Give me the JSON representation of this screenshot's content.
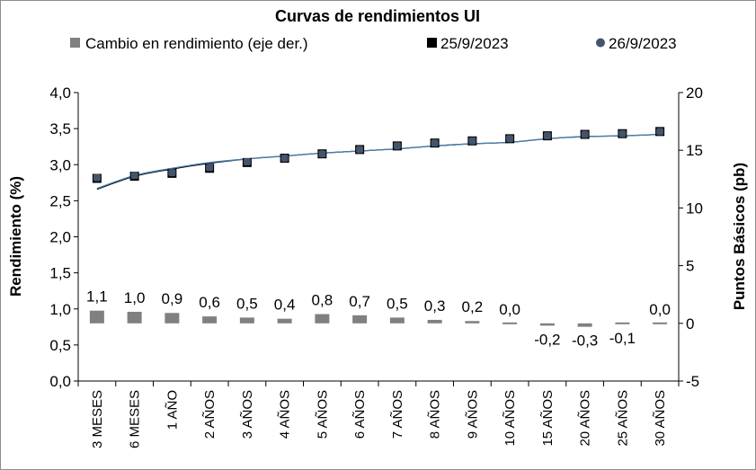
{
  "chart_data": {
    "type": "bar+line",
    "title": "Curvas de rendimientos UI",
    "categories": [
      "3 MESES",
      "6 MESES",
      "1 AÑO",
      "2 AÑOS",
      "3 AÑOS",
      "4 AÑOS",
      "5 AÑOS",
      "6 AÑOS",
      "7 AÑOS",
      "8 AÑOS",
      "9 AÑOS",
      "10 AÑOS",
      "15 AÑOS",
      "20 AÑOS",
      "25 AÑOS",
      "30 AÑOS"
    ],
    "series": [
      {
        "name": "Cambio en rendimiento (eje der.)",
        "type": "bar",
        "axis": "right",
        "color": "#808080",
        "values": [
          1.1,
          1.0,
          0.9,
          0.6,
          0.5,
          0.4,
          0.8,
          0.7,
          0.5,
          0.3,
          0.2,
          0.0,
          -0.2,
          -0.3,
          -0.1,
          0.0
        ],
        "labels": [
          "1,1",
          "1,0",
          "0,9",
          "0,6",
          "0,5",
          "0,4",
          "0,8",
          "0,7",
          "0,5",
          "0,3",
          "0,2",
          "0,0",
          "-0,2",
          "-0,3",
          "-0,1",
          "0,0"
        ]
      },
      {
        "name": "25/9/2023",
        "type": "scatter",
        "axis": "left",
        "marker": "square",
        "color": "#000000",
        "values": [
          2.81,
          2.84,
          2.88,
          2.95,
          3.03,
          3.09,
          3.15,
          3.21,
          3.26,
          3.3,
          3.33,
          3.36,
          3.4,
          3.42,
          3.43,
          3.46
        ]
      },
      {
        "name": "26/9/2023",
        "type": "scatter",
        "axis": "left",
        "marker": "circle",
        "color": "#44546a",
        "values": [
          2.82,
          2.85,
          2.89,
          2.96,
          3.04,
          3.09,
          3.15,
          3.21,
          3.26,
          3.3,
          3.33,
          3.36,
          3.4,
          3.42,
          3.43,
          3.46
        ]
      },
      {
        "type": "line",
        "axis": "left",
        "color": "#000000",
        "values": [
          2.66,
          2.84,
          2.94,
          3.02,
          3.08,
          3.12,
          3.16,
          3.19,
          3.22,
          3.26,
          3.29,
          3.31,
          3.36,
          3.39,
          3.4,
          3.42
        ]
      },
      {
        "type": "line",
        "axis": "left",
        "color": "#4a7fb0",
        "values": [
          2.67,
          2.85,
          2.95,
          3.03,
          3.08,
          3.12,
          3.16,
          3.19,
          3.22,
          3.26,
          3.29,
          3.31,
          3.36,
          3.39,
          3.4,
          3.42
        ]
      }
    ],
    "ylabel": "Rendimiento (%)",
    "ylabel_right": "Puntos Básicos (pb)",
    "ylim": [
      0,
      4
    ],
    "ylim_right": [
      -5,
      20
    ],
    "y_ticks": [
      "0,0",
      "0,5",
      "1,0",
      "1,5",
      "2,0",
      "2,5",
      "3,0",
      "3,5",
      "4,0"
    ],
    "y_ticks_right": [
      "-5",
      "0",
      "5",
      "10",
      "15",
      "20"
    ],
    "grid": false,
    "legend": "top"
  }
}
